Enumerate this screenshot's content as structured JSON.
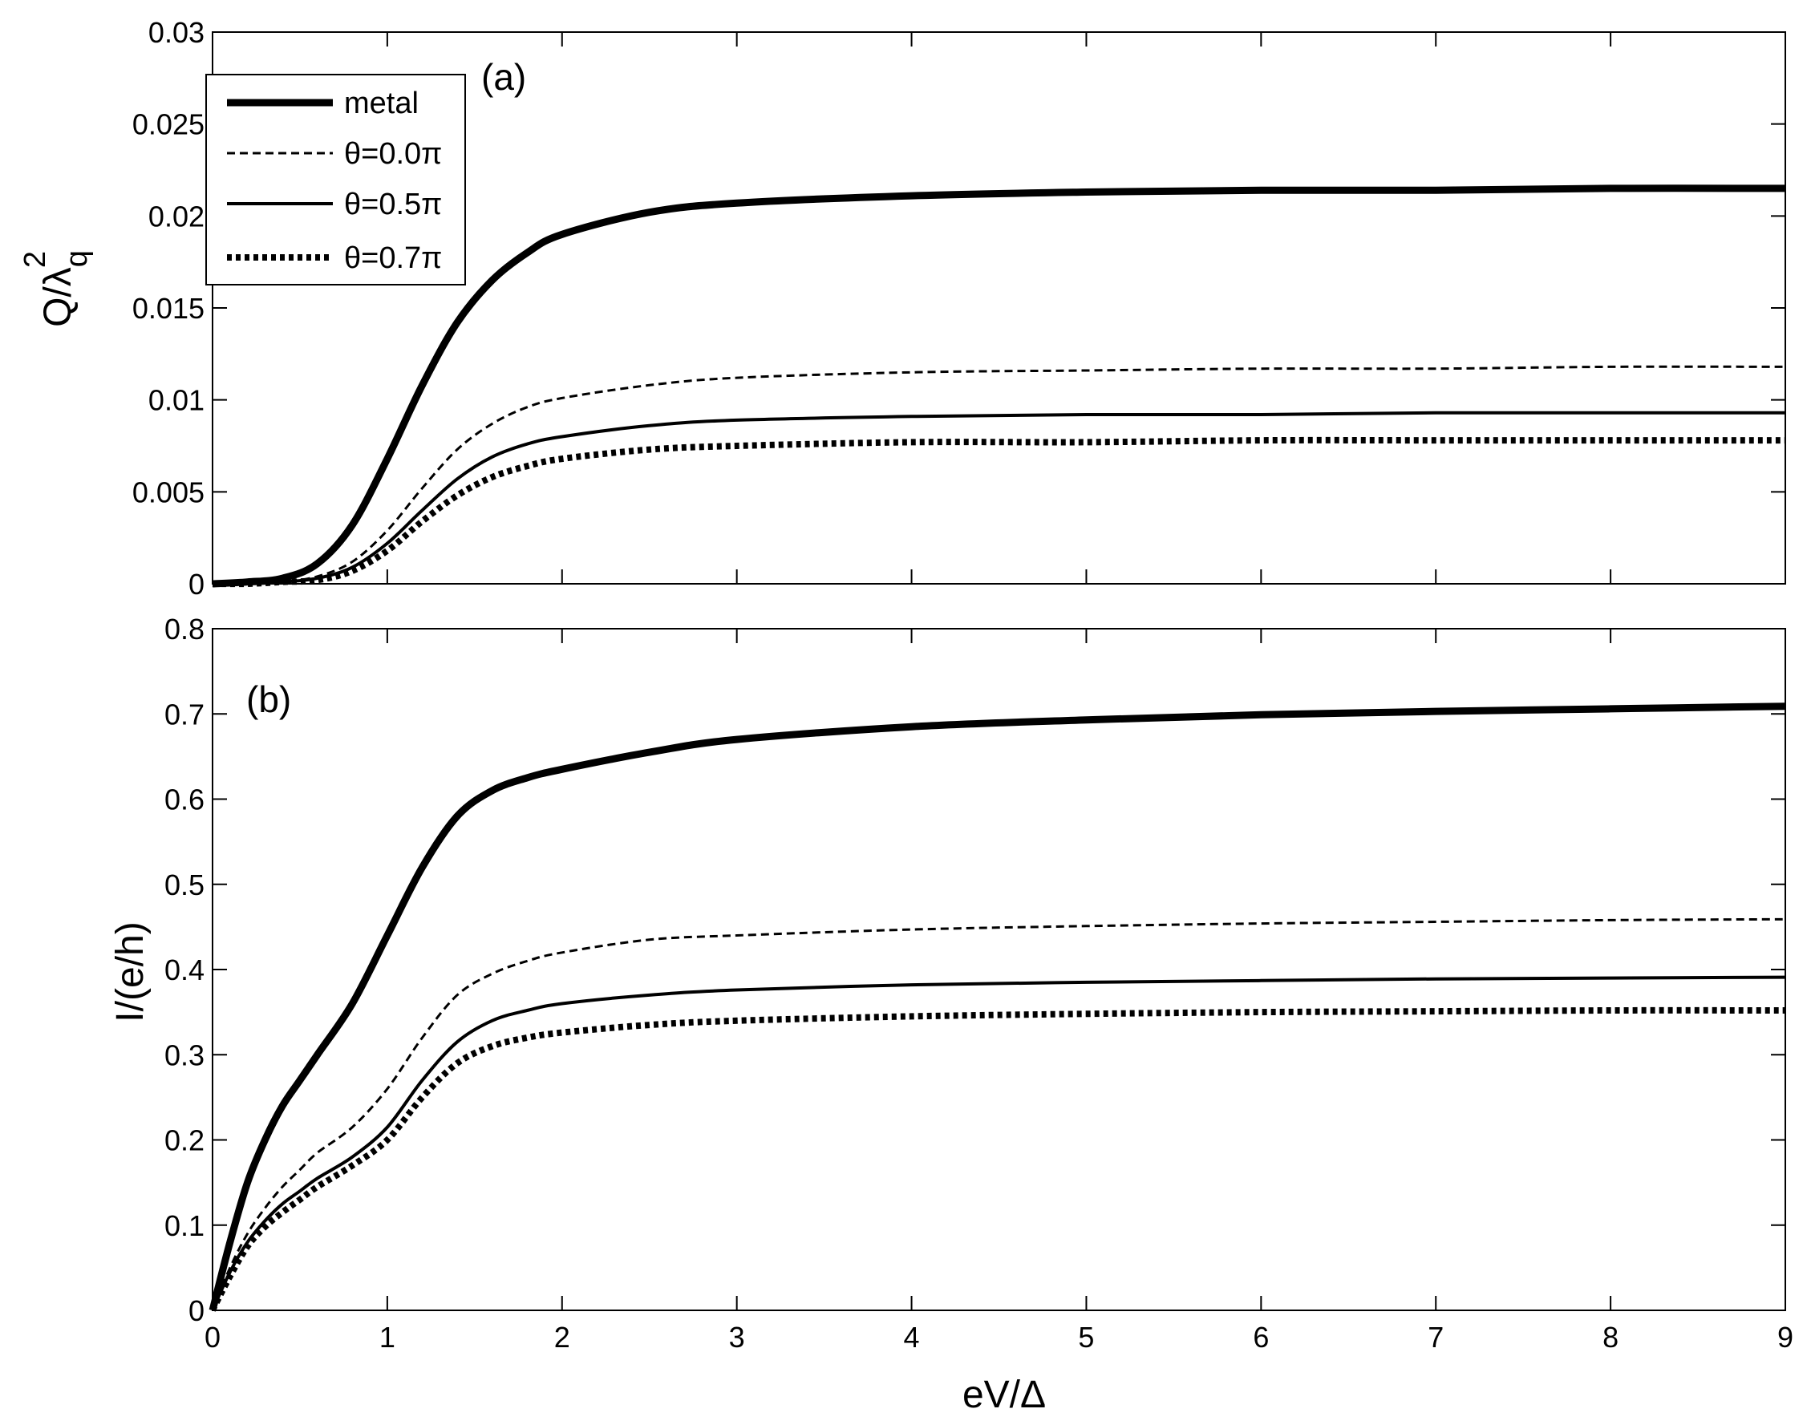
{
  "chart_data": [
    {
      "panel": "(a)",
      "type": "line",
      "xlabel": "",
      "ylabel": "Q/λ",
      "ylabel_super": "2",
      "ylabel_sub": "q",
      "xlim": [
        0,
        9
      ],
      "ylim": [
        0,
        0.03
      ],
      "xticks": [
        0,
        1,
        2,
        3,
        4,
        5,
        6,
        7,
        8,
        9
      ],
      "yticks": [
        0,
        0.005,
        0.01,
        0.015,
        0.02,
        0.025,
        0.03
      ],
      "ytick_labels": [
        "0",
        "0.005",
        "0.01",
        "0.015",
        "0.02",
        "0.025",
        "0.03"
      ],
      "grid": false,
      "legend_placement": "top-left",
      "series": [
        {
          "name": "metal",
          "style": "thick-solid",
          "color": "#000000",
          "x": [
            0,
            0.2,
            0.4,
            0.6,
            0.8,
            1.0,
            1.2,
            1.4,
            1.6,
            1.8,
            2.0,
            2.5,
            3.0,
            4.0,
            5.0,
            6.0,
            7.0,
            8.0,
            9.0
          ],
          "y": [
            0,
            0.0001,
            0.0003,
            0.0011,
            0.0032,
            0.0068,
            0.0108,
            0.0142,
            0.0165,
            0.018,
            0.019,
            0.0202,
            0.0207,
            0.0211,
            0.0213,
            0.0214,
            0.0214,
            0.0215,
            0.0215
          ]
        },
        {
          "name": "θ=0.0π",
          "style": "dashed",
          "color": "#000000",
          "x": [
            0,
            0.2,
            0.4,
            0.6,
            0.8,
            1.0,
            1.2,
            1.4,
            1.6,
            1.8,
            2.0,
            2.5,
            3.0,
            4.0,
            5.0,
            6.0,
            7.0,
            8.0,
            9.0
          ],
          "y": [
            0,
            0,
            0.0001,
            0.0004,
            0.0012,
            0.0029,
            0.0052,
            0.0073,
            0.0087,
            0.0096,
            0.0101,
            0.0108,
            0.0112,
            0.0115,
            0.0116,
            0.0117,
            0.0117,
            0.0118,
            0.0118
          ]
        },
        {
          "name": "θ=0.5π",
          "style": "solid",
          "color": "#000000",
          "x": [
            0,
            0.2,
            0.4,
            0.6,
            0.8,
            1.0,
            1.2,
            1.4,
            1.6,
            1.8,
            2.0,
            2.5,
            3.0,
            4.0,
            5.0,
            6.0,
            7.0,
            8.0,
            9.0
          ],
          "y": [
            0,
            0,
            0.0001,
            0.0003,
            0.0009,
            0.0022,
            0.004,
            0.0057,
            0.0069,
            0.0076,
            0.008,
            0.0086,
            0.0089,
            0.0091,
            0.0092,
            0.0092,
            0.0093,
            0.0093,
            0.0093
          ]
        },
        {
          "name": "θ=0.7π",
          "style": "dotted",
          "color": "#000000",
          "x": [
            0,
            0.2,
            0.4,
            0.6,
            0.8,
            1.0,
            1.2,
            1.4,
            1.6,
            1.8,
            2.0,
            2.5,
            3.0,
            4.0,
            5.0,
            6.0,
            7.0,
            8.0,
            9.0
          ],
          "y": [
            0,
            0,
            0.0001,
            0.0002,
            0.0007,
            0.0018,
            0.0034,
            0.0048,
            0.0058,
            0.0064,
            0.0068,
            0.0073,
            0.0075,
            0.0077,
            0.0077,
            0.0078,
            0.0078,
            0.0078,
            0.0078
          ]
        }
      ]
    },
    {
      "panel": "(b)",
      "type": "line",
      "xlabel": "eV/Δ",
      "ylabel": "I/(e/h)",
      "xlim": [
        0,
        9
      ],
      "ylim": [
        0,
        0.8
      ],
      "xticks": [
        0,
        1,
        2,
        3,
        4,
        5,
        6,
        7,
        8,
        9
      ],
      "yticks": [
        0,
        0.1,
        0.2,
        0.3,
        0.4,
        0.5,
        0.6,
        0.7,
        0.8
      ],
      "ytick_labels": [
        "0",
        "0.1",
        "0.2",
        "0.3",
        "0.4",
        "0.5",
        "0.6",
        "0.7",
        "0.8"
      ],
      "grid": false,
      "series": [
        {
          "name": "metal",
          "style": "thick-solid",
          "color": "#000000",
          "x": [
            0,
            0.1,
            0.2,
            0.3,
            0.4,
            0.5,
            0.6,
            0.8,
            1.0,
            1.2,
            1.4,
            1.6,
            1.8,
            2.0,
            2.5,
            3.0,
            4.0,
            5.0,
            6.0,
            7.0,
            8.0,
            9.0
          ],
          "y": [
            0,
            0.08,
            0.15,
            0.2,
            0.24,
            0.27,
            0.3,
            0.36,
            0.44,
            0.52,
            0.58,
            0.61,
            0.625,
            0.635,
            0.655,
            0.67,
            0.685,
            0.693,
            0.699,
            0.703,
            0.706,
            0.709
          ]
        },
        {
          "name": "θ=0.0π",
          "style": "dashed",
          "color": "#000000",
          "x": [
            0,
            0.1,
            0.2,
            0.3,
            0.4,
            0.5,
            0.6,
            0.8,
            1.0,
            1.2,
            1.4,
            1.6,
            1.8,
            2.0,
            2.5,
            3.0,
            4.0,
            5.0,
            6.0,
            7.0,
            8.0,
            9.0
          ],
          "y": [
            0,
            0.05,
            0.09,
            0.12,
            0.145,
            0.165,
            0.185,
            0.215,
            0.26,
            0.32,
            0.37,
            0.395,
            0.41,
            0.42,
            0.435,
            0.44,
            0.447,
            0.451,
            0.454,
            0.456,
            0.458,
            0.459
          ]
        },
        {
          "name": "θ=0.5π",
          "style": "solid",
          "color": "#000000",
          "x": [
            0,
            0.1,
            0.2,
            0.3,
            0.4,
            0.5,
            0.6,
            0.8,
            1.0,
            1.2,
            1.4,
            1.6,
            1.8,
            2.0,
            2.5,
            3.0,
            4.0,
            5.0,
            6.0,
            7.0,
            8.0,
            9.0
          ],
          "y": [
            0,
            0.045,
            0.08,
            0.105,
            0.125,
            0.14,
            0.155,
            0.18,
            0.215,
            0.27,
            0.315,
            0.34,
            0.352,
            0.36,
            0.37,
            0.376,
            0.382,
            0.385,
            0.387,
            0.389,
            0.39,
            0.391
          ]
        },
        {
          "name": "θ=0.7π",
          "style": "dotted",
          "color": "#000000",
          "x": [
            0,
            0.1,
            0.2,
            0.3,
            0.4,
            0.5,
            0.6,
            0.8,
            1.0,
            1.2,
            1.4,
            1.6,
            1.8,
            2.0,
            2.5,
            3.0,
            4.0,
            5.0,
            6.0,
            7.0,
            8.0,
            9.0
          ],
          "y": [
            0,
            0.04,
            0.075,
            0.098,
            0.115,
            0.13,
            0.145,
            0.17,
            0.2,
            0.25,
            0.29,
            0.31,
            0.32,
            0.326,
            0.335,
            0.34,
            0.345,
            0.348,
            0.35,
            0.351,
            0.352,
            0.352
          ]
        }
      ]
    }
  ]
}
